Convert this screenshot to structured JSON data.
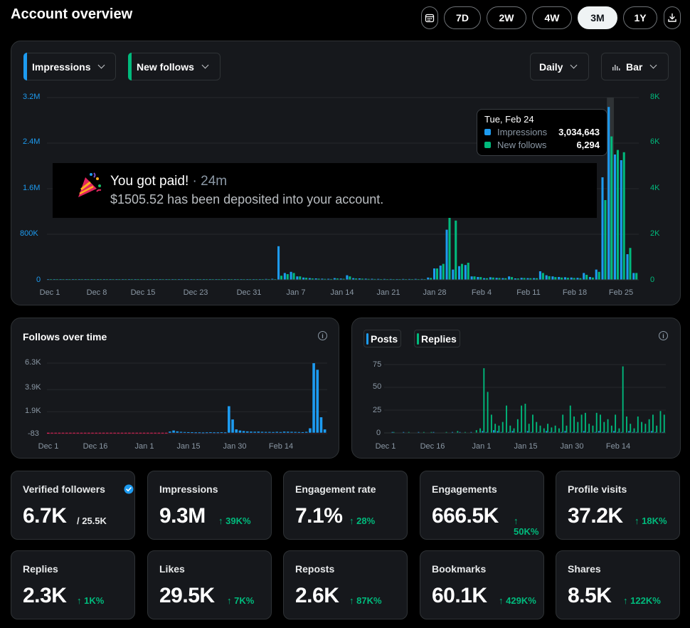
{
  "header": {
    "title": "Account overview",
    "ranges": [
      "7D",
      "2W",
      "4W",
      "3M",
      "1Y"
    ],
    "active_range": "3M"
  },
  "main_chart": {
    "metric1": "Impressions",
    "metric2": "New follows",
    "granularity": "Daily",
    "chart_type_label": "Bar",
    "left_ticks": [
      "3.2M",
      "2.4M",
      "1.6M",
      "800K",
      "0"
    ],
    "right_ticks": [
      "8K",
      "6K",
      "4K",
      "2K",
      "0"
    ],
    "x_labels": [
      "Dec 1",
      "Dec 8",
      "Dec 15",
      "Dec 23",
      "Dec 31",
      "Jan 7",
      "Jan 14",
      "Jan 21",
      "Jan 28",
      "Feb 4",
      "Feb 11",
      "Feb 18",
      "Feb 25"
    ],
    "tooltip": {
      "date": "Tue, Feb 24",
      "rows": [
        {
          "label": "Impressions",
          "value": "3,034,643",
          "color": "#1d9bf0"
        },
        {
          "label": "New follows",
          "value": "6,294",
          "color": "#00ba7c"
        }
      ]
    }
  },
  "toast": {
    "title": "You got paid!",
    "time": "· 24m",
    "message": "$1505.52 has been deposited into your account."
  },
  "follows_chart": {
    "title": "Follows over time",
    "y_ticks": [
      "6.3K",
      "3.9K",
      "1.9K",
      "-83"
    ],
    "x_labels": [
      "Dec 1",
      "Dec 16",
      "Jan 1",
      "Jan 15",
      "Jan 30",
      "Feb 14"
    ]
  },
  "posts_chart": {
    "legend1": "Posts",
    "legend2": "Replies",
    "y_ticks": [
      "75",
      "50",
      "25",
      "0"
    ],
    "x_labels": [
      "Dec 1",
      "Dec 16",
      "Jan 1",
      "Jan 15",
      "Jan 30",
      "Feb 14"
    ]
  },
  "stats_row1": [
    {
      "label": "Verified followers",
      "value": "6.7K",
      "sub": "/ 25.5K",
      "verified": true
    },
    {
      "label": "Impressions",
      "value": "9.3M",
      "change": "39K%"
    },
    {
      "label": "Engagement rate",
      "value": "7.1%",
      "change": "28%"
    },
    {
      "label": "Engagements",
      "value": "666.5K",
      "change": "50K%"
    },
    {
      "label": "Profile visits",
      "value": "37.2K",
      "change": "18K%"
    }
  ],
  "stats_row2": [
    {
      "label": "Replies",
      "value": "2.3K",
      "change": "1K%"
    },
    {
      "label": "Likes",
      "value": "29.5K",
      "change": "7K%"
    },
    {
      "label": "Reposts",
      "value": "2.6K",
      "change": "87K%"
    },
    {
      "label": "Bookmarks",
      "value": "60.1K",
      "change": "429K%"
    },
    {
      "label": "Shares",
      "value": "8.5K",
      "change": "122K%"
    }
  ],
  "chart_data": [
    {
      "type": "bar",
      "title": "",
      "x_start": "Dec 1",
      "x_end": "Feb 26",
      "series": [
        {
          "name": "Impressions",
          "axis": "left",
          "color": "#1d9bf0",
          "values": [
            12000,
            8000,
            10000,
            9000,
            7000,
            11000,
            9000,
            8000,
            12000,
            10000,
            9000,
            8000,
            11000,
            9000,
            10000,
            9000,
            8000,
            12000,
            9000,
            10000,
            8000,
            9000,
            11000,
            9000,
            8000,
            10000,
            9000,
            12000,
            9000,
            10000,
            8000,
            11000,
            9000,
            10000,
            12000,
            15000,
            18000,
            590000,
            120000,
            140000,
            60000,
            40000,
            30000,
            25000,
            20000,
            18000,
            30000,
            22000,
            80000,
            30000,
            25000,
            20000,
            18000,
            16000,
            15000,
            14000,
            13000,
            15000,
            14000,
            16000,
            15000,
            40000,
            200000,
            250000,
            880000,
            180000,
            240000,
            260000,
            60000,
            50000,
            30000,
            45000,
            35000,
            30000,
            60000,
            25000,
            35000,
            30000,
            30000,
            150000,
            80000,
            60000,
            50000,
            45000,
            40000,
            35000,
            120000,
            50000,
            180000,
            1800000,
            3034643,
            2200000,
            2100000,
            450000,
            120000
          ]
        },
        {
          "name": "New follows",
          "axis": "right",
          "color": "#00ba7c",
          "values": [
            20,
            15,
            18,
            12,
            10,
            14,
            12,
            10,
            15,
            12,
            10,
            9,
            12,
            10,
            11,
            10,
            9,
            14,
            10,
            11,
            9,
            10,
            12,
            10,
            9,
            11,
            10,
            13,
            10,
            11,
            9,
            12,
            10,
            11,
            14,
            18,
            20,
            180,
            250,
            300,
            150,
            90,
            60,
            50,
            40,
            35,
            60,
            45,
            150,
            60,
            50,
            40,
            35,
            30,
            30,
            28,
            25,
            30,
            28,
            32,
            30,
            80,
            500,
            700,
            3800,
            2600,
            700,
            750,
            150,
            120,
            70,
            100,
            80,
            70,
            120,
            60,
            80,
            70,
            70,
            300,
            160,
            120,
            100,
            90,
            80,
            70,
            220,
            100,
            350,
            3500,
            6294,
            5700,
            5600,
            1400,
            300
          ]
        }
      ],
      "left_ylim": [
        0,
        3200000
      ],
      "right_ylim": [
        0,
        8000
      ]
    },
    {
      "type": "bar",
      "title": "Follows over time",
      "series": [
        {
          "name": "",
          "color": "#1d9bf0",
          "values": [
            -83,
            -60,
            -50,
            -40,
            -30,
            -50,
            -40,
            -30,
            -35,
            -40,
            -45,
            -40,
            -35,
            -30,
            -40,
            -50,
            -40,
            -30,
            -30,
            -35,
            -40,
            -45,
            -40,
            -30,
            -30,
            -35,
            -40,
            -35,
            -30,
            -40,
            -40,
            -35,
            -30,
            100,
            200,
            120,
            80,
            60,
            50,
            40,
            30,
            30,
            20,
            30,
            40,
            30,
            30,
            40,
            30,
            2400,
            1200,
            300,
            200,
            150,
            120,
            100,
            90,
            100,
            80,
            70,
            70,
            60,
            80,
            60,
            100,
            90,
            80,
            70,
            60,
            50,
            80,
            400,
            6294,
            5700,
            1400,
            300
          ]
        }
      ],
      "ylim": [
        -83,
        6300
      ]
    },
    {
      "type": "bar",
      "series": [
        {
          "name": "Posts",
          "color": "#1d9bf0",
          "values": [
            0,
            0,
            1,
            0,
            0,
            1,
            0,
            0,
            0,
            1,
            0,
            0,
            0,
            1,
            0,
            0,
            0,
            0,
            1,
            0,
            1,
            0,
            0,
            1,
            0,
            0,
            2,
            1,
            0,
            3,
            2,
            1,
            0,
            1,
            2,
            0,
            1,
            0,
            2,
            1,
            0,
            1,
            0,
            2,
            1,
            1,
            0,
            1,
            2,
            0,
            1,
            1,
            0,
            2,
            1,
            0,
            1,
            2,
            1,
            1,
            0,
            2,
            1,
            1,
            0,
            2,
            1,
            1,
            0,
            1,
            1,
            2,
            1,
            0,
            1
          ]
        },
        {
          "name": "Replies",
          "color": "#00ba7c",
          "values": [
            0,
            0,
            1,
            0,
            0,
            0,
            1,
            0,
            0,
            0,
            1,
            0,
            1,
            0,
            0,
            0,
            1,
            0,
            0,
            2,
            0,
            1,
            0,
            0,
            3,
            5,
            71,
            45,
            20,
            10,
            8,
            12,
            30,
            8,
            5,
            15,
            30,
            32,
            10,
            20,
            12,
            8,
            5,
            10,
            6,
            8,
            5,
            20,
            8,
            30,
            18,
            12,
            20,
            22,
            10,
            8,
            22,
            20,
            12,
            15,
            8,
            20,
            5,
            73,
            18,
            10,
            5,
            18,
            12,
            10,
            15,
            20,
            8,
            24,
            20
          ]
        }
      ],
      "ylim": [
        0,
        75
      ]
    }
  ]
}
